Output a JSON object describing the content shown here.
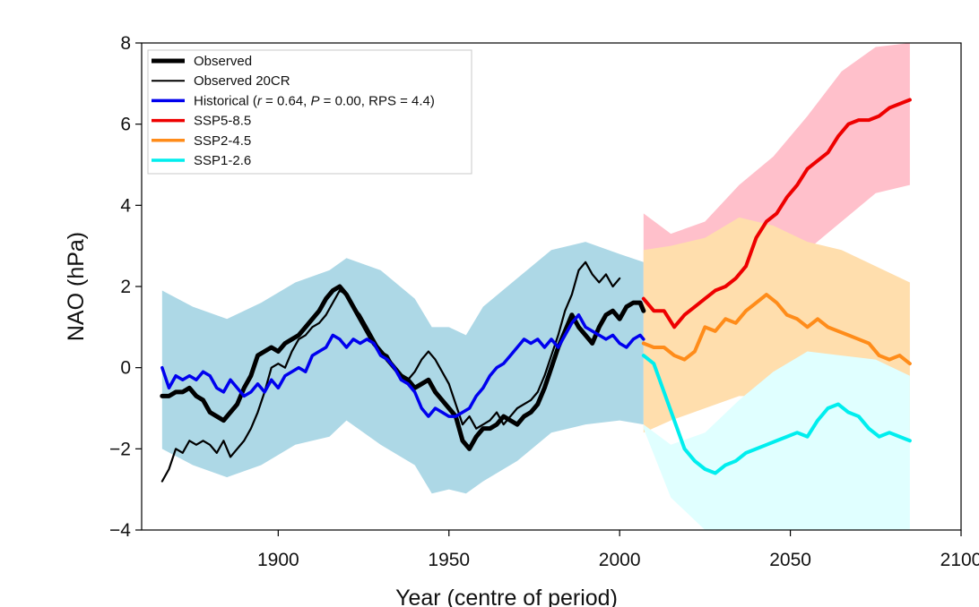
{
  "chart_data": {
    "type": "line",
    "xlabel": "Year (centre of period)",
    "ylabel": "NAO (hPa)",
    "xlim": [
      1860,
      2100
    ],
    "ylim": [
      -4,
      8
    ],
    "xticks": [
      1900,
      1950,
      2000,
      2050,
      2100
    ],
    "yticks": [
      -4,
      -2,
      0,
      2,
      4,
      6,
      8
    ],
    "ytick_labels": [
      "−4",
      "−2",
      "0",
      "2",
      "4",
      "6",
      "8"
    ],
    "grid": false,
    "legend_position": "top-left",
    "legend": [
      {
        "label": "Observed",
        "color": "#000000",
        "weight": "thick"
      },
      {
        "label": "Observed 20CR",
        "color": "#000000",
        "weight": "thin"
      },
      {
        "label": "Historical (r = 0.64, P = 0.00, RPS = 4.4)",
        "color": "#0000ee",
        "weight": "medium",
        "parts": [
          [
            "Historical (",
            ""
          ],
          [
            "r",
            "italic"
          ],
          [
            " = 0.64, ",
            ""
          ],
          [
            "P",
            "italic"
          ],
          [
            " = 0.00, RPS = 4.4)",
            ""
          ]
        ]
      },
      {
        "label": "SSP5-8.5",
        "color": "#ee0000",
        "weight": "medium"
      },
      {
        "label": "SSP2-4.5",
        "color": "#ff8c1a",
        "weight": "medium"
      },
      {
        "label": "SSP1-2.6",
        "color": "#00eeee",
        "weight": "medium"
      }
    ],
    "bands": [
      {
        "name": "Historical range",
        "color": "#add8e6",
        "x": [
          1866,
          1875,
          1885,
          1895,
          1905,
          1915,
          1920,
          1930,
          1940,
          1945,
          1950,
          1955,
          1960,
          1970,
          1980,
          1990,
          2000,
          2007
        ],
        "upper": [
          1.9,
          1.5,
          1.2,
          1.6,
          2.1,
          2.4,
          2.7,
          2.4,
          1.7,
          1.0,
          1.0,
          0.8,
          1.5,
          2.2,
          2.9,
          3.1,
          2.8,
          2.6
        ],
        "lower": [
          -2.0,
          -2.4,
          -2.7,
          -2.4,
          -1.9,
          -1.7,
          -1.3,
          -1.9,
          -2.4,
          -3.1,
          -3.0,
          -3.1,
          -2.8,
          -2.3,
          -1.6,
          -1.4,
          -1.3,
          -1.4
        ]
      },
      {
        "name": "SSP5-8.5 range",
        "color": "#ffc0cb",
        "x": [
          2007,
          2015,
          2025,
          2035,
          2045,
          2055,
          2065,
          2075,
          2085
        ],
        "upper": [
          3.8,
          3.3,
          3.6,
          4.5,
          5.2,
          6.2,
          7.3,
          7.9,
          8.0
        ],
        "lower": [
          -0.2,
          -0.4,
          0.0,
          0.9,
          2.0,
          2.9,
          3.6,
          4.3,
          4.5
        ]
      },
      {
        "name": "SSP2-4.5 range",
        "color": "#ffdead",
        "x": [
          2007,
          2015,
          2025,
          2035,
          2045,
          2055,
          2065,
          2075,
          2085
        ],
        "upper": [
          2.9,
          3.0,
          3.2,
          3.7,
          3.5,
          3.1,
          2.9,
          2.5,
          2.1
        ],
        "lower": [
          -1.6,
          -1.3,
          -1.0,
          -0.7,
          -0.7,
          -0.9,
          -1.1,
          -1.5,
          -1.8
        ]
      },
      {
        "name": "SSP1-2.6 range",
        "color": "#e0ffff",
        "x": [
          2007,
          2015,
          2025,
          2035,
          2045,
          2055,
          2065,
          2075,
          2085
        ],
        "upper": [
          -1.4,
          -1.9,
          -1.6,
          -0.8,
          -0.1,
          0.4,
          0.3,
          0.2,
          -0.2
        ],
        "lower": [
          -1.5,
          -3.2,
          -4.0,
          -4.0,
          -4.0,
          -4.0,
          -4.0,
          -4.0,
          -4.0
        ]
      }
    ],
    "series": [
      {
        "name": "Observed 20CR",
        "color": "#000000",
        "width": 2.2,
        "x": [
          1866,
          1868,
          1870,
          1872,
          1874,
          1876,
          1878,
          1880,
          1882,
          1884,
          1886,
          1888,
          1890,
          1892,
          1894,
          1896,
          1898,
          1900,
          1902,
          1904,
          1906,
          1908,
          1910,
          1912,
          1914,
          1916,
          1918,
          1920,
          1922,
          1924,
          1926,
          1928,
          1930,
          1932,
          1934,
          1936,
          1938,
          1940,
          1942,
          1944,
          1946,
          1948,
          1950,
          1952,
          1954,
          1956,
          1958,
          1960,
          1962,
          1964,
          1966,
          1968,
          1970,
          1972,
          1974,
          1976,
          1978,
          1980,
          1982,
          1984,
          1986,
          1988,
          1990,
          1992,
          1994,
          1996,
          1998,
          2000
        ],
        "y": [
          -2.8,
          -2.5,
          -2.0,
          -2.1,
          -1.8,
          -1.9,
          -1.8,
          -1.9,
          -2.1,
          -1.8,
          -2.2,
          -2.0,
          -1.8,
          -1.5,
          -1.1,
          -0.6,
          0.0,
          0.1,
          0.0,
          0.4,
          0.7,
          0.8,
          1.0,
          1.1,
          1.3,
          1.6,
          1.9,
          1.8,
          1.5,
          1.3,
          1.0,
          0.7,
          0.4,
          0.3,
          0.0,
          -0.2,
          -0.3,
          -0.1,
          0.2,
          0.4,
          0.2,
          -0.1,
          -0.4,
          -0.9,
          -1.4,
          -1.2,
          -1.5,
          -1.4,
          -1.3,
          -1.1,
          -1.4,
          -1.2,
          -1.0,
          -0.9,
          -0.8,
          -0.6,
          -0.2,
          0.3,
          0.8,
          1.4,
          1.8,
          2.4,
          2.6,
          2.3,
          2.1,
          2.3,
          2.0,
          2.2
        ]
      },
      {
        "name": "Observed",
        "color": "#000000",
        "width": 5,
        "x": [
          1866,
          1868,
          1870,
          1872,
          1874,
          1876,
          1878,
          1880,
          1882,
          1884,
          1886,
          1888,
          1890,
          1892,
          1894,
          1896,
          1898,
          1900,
          1902,
          1904,
          1906,
          1908,
          1910,
          1912,
          1914,
          1916,
          1918,
          1920,
          1922,
          1924,
          1926,
          1928,
          1930,
          1932,
          1934,
          1936,
          1938,
          1940,
          1942,
          1944,
          1946,
          1948,
          1950,
          1952,
          1954,
          1956,
          1958,
          1960,
          1962,
          1964,
          1966,
          1968,
          1970,
          1972,
          1974,
          1976,
          1978,
          1980,
          1982,
          1984,
          1986,
          1988,
          1990,
          1992,
          1994,
          1996,
          1998,
          2000,
          2002,
          2004,
          2006,
          2007
        ],
        "y": [
          -0.7,
          -0.7,
          -0.6,
          -0.6,
          -0.5,
          -0.7,
          -0.8,
          -1.1,
          -1.2,
          -1.3,
          -1.1,
          -0.9,
          -0.5,
          -0.2,
          0.3,
          0.4,
          0.5,
          0.4,
          0.6,
          0.7,
          0.8,
          1.0,
          1.2,
          1.4,
          1.7,
          1.9,
          2.0,
          1.8,
          1.5,
          1.2,
          0.9,
          0.6,
          0.4,
          0.2,
          0.0,
          -0.2,
          -0.3,
          -0.5,
          -0.4,
          -0.3,
          -0.6,
          -0.8,
          -1.0,
          -1.2,
          -1.8,
          -2.0,
          -1.7,
          -1.5,
          -1.5,
          -1.4,
          -1.2,
          -1.3,
          -1.4,
          -1.2,
          -1.1,
          -0.9,
          -0.5,
          0.0,
          0.5,
          0.9,
          1.3,
          1.0,
          0.8,
          0.6,
          1.0,
          1.3,
          1.4,
          1.2,
          1.5,
          1.6,
          1.6,
          1.4
        ]
      },
      {
        "name": "Historical",
        "color": "#0000ee",
        "width": 3.5,
        "x": [
          1866,
          1868,
          1870,
          1872,
          1874,
          1876,
          1878,
          1880,
          1882,
          1884,
          1886,
          1888,
          1890,
          1892,
          1894,
          1896,
          1898,
          1900,
          1902,
          1904,
          1906,
          1908,
          1910,
          1912,
          1914,
          1916,
          1918,
          1920,
          1922,
          1924,
          1926,
          1928,
          1930,
          1932,
          1934,
          1936,
          1938,
          1940,
          1942,
          1944,
          1946,
          1948,
          1950,
          1952,
          1954,
          1956,
          1958,
          1960,
          1962,
          1964,
          1966,
          1968,
          1970,
          1972,
          1974,
          1976,
          1978,
          1980,
          1982,
          1984,
          1986,
          1988,
          1990,
          1992,
          1994,
          1996,
          1998,
          2000,
          2002,
          2004,
          2006,
          2007
        ],
        "y": [
          0.0,
          -0.5,
          -0.2,
          -0.3,
          -0.2,
          -0.3,
          -0.1,
          -0.2,
          -0.5,
          -0.6,
          -0.3,
          -0.5,
          -0.7,
          -0.6,
          -0.4,
          -0.6,
          -0.3,
          -0.5,
          -0.2,
          -0.1,
          0.0,
          -0.1,
          0.3,
          0.4,
          0.5,
          0.8,
          0.7,
          0.5,
          0.7,
          0.6,
          0.7,
          0.6,
          0.3,
          0.2,
          0.0,
          -0.3,
          -0.4,
          -0.6,
          -1.0,
          -1.2,
          -1.0,
          -1.1,
          -1.2,
          -1.2,
          -1.1,
          -1.0,
          -0.7,
          -0.5,
          -0.2,
          0.0,
          0.1,
          0.3,
          0.5,
          0.7,
          0.6,
          0.7,
          0.5,
          0.7,
          0.5,
          0.8,
          1.1,
          1.3,
          1.0,
          0.9,
          0.8,
          0.7,
          0.8,
          0.6,
          0.5,
          0.7,
          0.8,
          0.7
        ]
      },
      {
        "name": "SSP5-8.5",
        "color": "#ee0000",
        "width": 4,
        "x": [
          2007,
          2010,
          2013,
          2016,
          2019,
          2022,
          2025,
          2028,
          2031,
          2034,
          2037,
          2040,
          2043,
          2046,
          2049,
          2052,
          2055,
          2058,
          2061,
          2064,
          2067,
          2070,
          2073,
          2076,
          2079,
          2082,
          2085
        ],
        "y": [
          1.7,
          1.4,
          1.4,
          1.0,
          1.3,
          1.5,
          1.7,
          1.9,
          2.0,
          2.2,
          2.5,
          3.2,
          3.6,
          3.8,
          4.2,
          4.5,
          4.9,
          5.1,
          5.3,
          5.7,
          6.0,
          6.1,
          6.1,
          6.2,
          6.4,
          6.5,
          6.6
        ]
      },
      {
        "name": "SSP2-4.5",
        "color": "#ff8c1a",
        "width": 4,
        "x": [
          2007,
          2010,
          2013,
          2016,
          2019,
          2022,
          2025,
          2028,
          2031,
          2034,
          2037,
          2040,
          2043,
          2046,
          2049,
          2052,
          2055,
          2058,
          2061,
          2064,
          2067,
          2070,
          2073,
          2076,
          2079,
          2082,
          2085
        ],
        "y": [
          0.6,
          0.5,
          0.5,
          0.3,
          0.2,
          0.4,
          1.0,
          0.9,
          1.2,
          1.1,
          1.4,
          1.6,
          1.8,
          1.6,
          1.3,
          1.2,
          1.0,
          1.2,
          1.0,
          0.9,
          0.8,
          0.7,
          0.6,
          0.3,
          0.2,
          0.3,
          0.1
        ]
      },
      {
        "name": "SSP1-2.6",
        "color": "#00eeee",
        "width": 4,
        "x": [
          2007,
          2010,
          2013,
          2016,
          2019,
          2022,
          2025,
          2028,
          2031,
          2034,
          2037,
          2040,
          2043,
          2046,
          2049,
          2052,
          2055,
          2058,
          2061,
          2064,
          2067,
          2070,
          2073,
          2076,
          2079,
          2082,
          2085
        ],
        "y": [
          0.3,
          0.1,
          -0.6,
          -1.3,
          -2.0,
          -2.3,
          -2.5,
          -2.6,
          -2.4,
          -2.3,
          -2.1,
          -2.0,
          -1.9,
          -1.8,
          -1.7,
          -1.6,
          -1.7,
          -1.3,
          -1.0,
          -0.9,
          -1.1,
          -1.2,
          -1.5,
          -1.7,
          -1.6,
          -1.7,
          -1.8
        ]
      }
    ]
  }
}
